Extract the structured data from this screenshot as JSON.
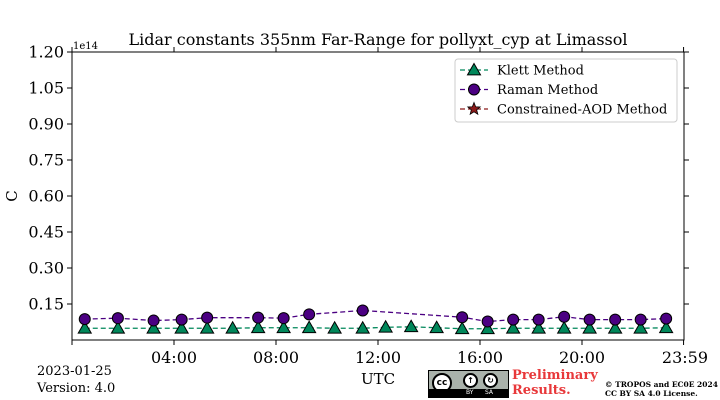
{
  "chart_data": {
    "type": "line",
    "title": "Lidar constants 355nm Far-Range for pollyxt_cyp at Limassol",
    "xlabel": "UTC",
    "ylabel": "C",
    "y_multiplier_label": "1e14",
    "xlim": [
      0,
      24
    ],
    "ylim": [
      0,
      1.2
    ],
    "x_ticks": [
      {
        "value": 4,
        "label": "04:00"
      },
      {
        "value": 8,
        "label": "08:00"
      },
      {
        "value": 12,
        "label": "12:00"
      },
      {
        "value": 16,
        "label": "16:00"
      },
      {
        "value": 20,
        "label": "20:00"
      },
      {
        "value": 23.983,
        "label": "23:59"
      }
    ],
    "y_ticks": [
      {
        "value": 0.15,
        "label": "0.15"
      },
      {
        "value": 0.3,
        "label": "0.30"
      },
      {
        "value": 0.45,
        "label": "0.45"
      },
      {
        "value": 0.6,
        "label": "0.60"
      },
      {
        "value": 0.75,
        "label": "0.75"
      },
      {
        "value": 0.9,
        "label": "0.90"
      },
      {
        "value": 1.05,
        "label": "1.05"
      },
      {
        "value": 1.2,
        "label": "1.20"
      }
    ],
    "legend_position": "top-right",
    "series": [
      {
        "name": "Klett Method",
        "color": "#00875a",
        "marker": "triangle",
        "x": [
          0.5,
          1.8,
          3.2,
          4.3,
          5.3,
          6.3,
          7.3,
          8.3,
          9.3,
          10.3,
          11.4,
          12.3,
          13.3,
          14.3,
          15.3,
          16.3,
          17.3,
          18.3,
          19.3,
          20.3,
          21.3,
          22.3,
          23.3
        ],
        "y": [
          0.049,
          0.049,
          0.049,
          0.049,
          0.049,
          0.049,
          0.051,
          0.051,
          0.051,
          0.049,
          0.049,
          0.053,
          0.055,
          0.051,
          0.047,
          0.047,
          0.049,
          0.049,
          0.049,
          0.049,
          0.049,
          0.049,
          0.051
        ]
      },
      {
        "name": "Raman Method",
        "color": "#4b0082",
        "marker": "circle",
        "x": [
          0.5,
          1.8,
          3.2,
          4.3,
          5.3,
          7.3,
          8.3,
          9.3,
          11.4,
          15.3,
          16.3,
          17.3,
          18.3,
          19.3,
          20.3,
          21.3,
          22.3,
          23.3
        ],
        "y": [
          0.087,
          0.091,
          0.081,
          0.085,
          0.093,
          0.093,
          0.091,
          0.107,
          0.123,
          0.095,
          0.077,
          0.085,
          0.085,
          0.097,
          0.085,
          0.085,
          0.085,
          0.089
        ]
      },
      {
        "name": "Constrained-AOD Method",
        "color": "#8b1a1a",
        "marker": "star",
        "x": [],
        "y": []
      }
    ]
  },
  "footer": {
    "date": "2023-01-25",
    "version": "Version: 4.0",
    "badge_cc": "cc",
    "badge_by": "BY",
    "badge_sa": "SA",
    "preliminary_line1": "Preliminary",
    "preliminary_line2": "Results.",
    "copyright_line1": "© TROPOS and EC0E 2024",
    "copyright_line2": "CC BY SA 4.0 License."
  }
}
